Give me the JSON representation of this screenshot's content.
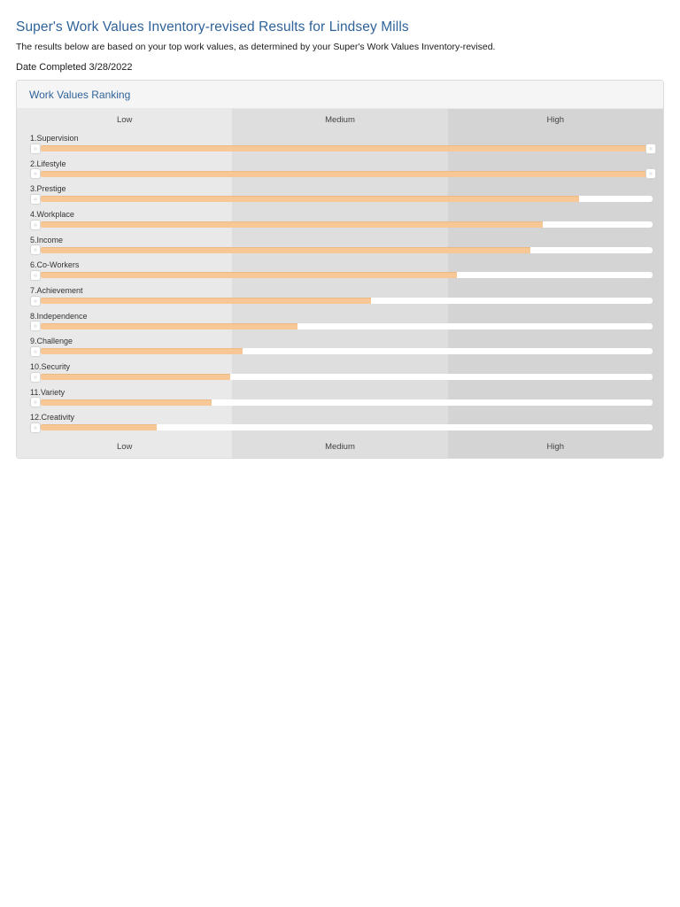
{
  "page": {
    "title": "Super's Work Values Inventory-revised Results for Lindsey Mills",
    "subtitle": "The results below are based on your top work values, as determined by your Super's Work Values Inventory-revised.",
    "date_completed": "Date Completed 3/28/2022"
  },
  "panel": {
    "heading": "Work Values Ranking"
  },
  "colors": {
    "accent_blue": "#2f6399",
    "bar_orange": "#f7c795",
    "band_low": "#e9e9e9",
    "band_medium": "#dedede",
    "band_high": "#d4d4d4"
  },
  "chart_data": {
    "type": "bar",
    "orientation": "horizontal",
    "title": "Work Values Ranking",
    "axis_zone_labels": [
      "Low",
      "Medium",
      "High"
    ],
    "axis_labels_position": "top and bottom",
    "value_scale": "percent of track width, 0-100",
    "xlim": [
      0,
      100
    ],
    "items": [
      {
        "rank": 1,
        "name": "Supervision",
        "label": "1.Supervision",
        "value_pct": 99,
        "zone": "High",
        "handle_at_end": true
      },
      {
        "rank": 2,
        "name": "Lifestyle",
        "label": "2.Lifestyle",
        "value_pct": 99,
        "zone": "High",
        "handle_at_end": true
      },
      {
        "rank": 3,
        "name": "Prestige",
        "label": "3.Prestige",
        "value_pct": 88,
        "zone": "High",
        "handle_at_end": false
      },
      {
        "rank": 4,
        "name": "Workplace",
        "label": "4.Workplace",
        "value_pct": 82,
        "zone": "High",
        "handle_at_end": false
      },
      {
        "rank": 5,
        "name": "Income",
        "label": "5.Income",
        "value_pct": 80,
        "zone": "High",
        "handle_at_end": false
      },
      {
        "rank": 6,
        "name": "Co-Workers",
        "label": "6.Co-Workers",
        "value_pct": 68,
        "zone": "High",
        "handle_at_end": false
      },
      {
        "rank": 7,
        "name": "Achievement",
        "label": "7.Achievement",
        "value_pct": 54,
        "zone": "Medium",
        "handle_at_end": false
      },
      {
        "rank": 8,
        "name": "Independence",
        "label": "8.Independence",
        "value_pct": 42,
        "zone": "Medium",
        "handle_at_end": false
      },
      {
        "rank": 9,
        "name": "Challenge",
        "label": "9.Challenge",
        "value_pct": 33,
        "zone": "Medium",
        "handle_at_end": false
      },
      {
        "rank": 10,
        "name": "Security",
        "label": "10.Security",
        "value_pct": 31,
        "zone": "Low",
        "handle_at_end": false
      },
      {
        "rank": 11,
        "name": "Variety",
        "label": "11.Variety",
        "value_pct": 28,
        "zone": "Low",
        "handle_at_end": false
      },
      {
        "rank": 12,
        "name": "Creativity",
        "label": "12.Creativity",
        "value_pct": 19,
        "zone": "Low",
        "handle_at_end": false
      }
    ]
  }
}
